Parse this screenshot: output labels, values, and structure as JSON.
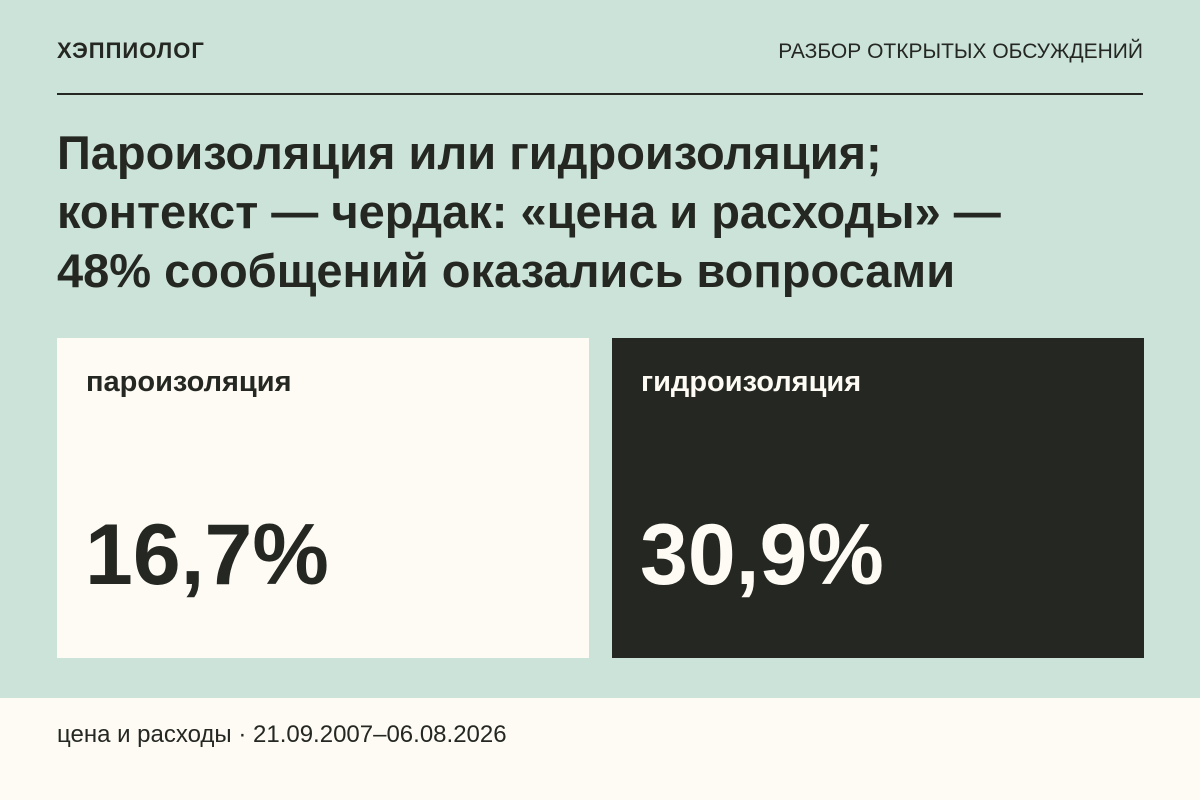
{
  "header": {
    "brand": "ХЭППИОЛОГ",
    "section": "РАЗБОР ОТКРЫТЫХ ОБСУЖДЕНИЙ"
  },
  "title": {
    "lines": [
      "Пароизоляция или гидроизоляция;",
      "контекст — чердак: «цена и расходы» —",
      "48% сообщений оказались вопросами"
    ]
  },
  "cards": [
    {
      "label": "пароизоляция",
      "value": "16,7%"
    },
    {
      "label": "гидроизоляция",
      "value": "30,9%"
    }
  ],
  "footer": {
    "text": "цена и расходы · 21.09.2007–06.08.2026"
  }
}
